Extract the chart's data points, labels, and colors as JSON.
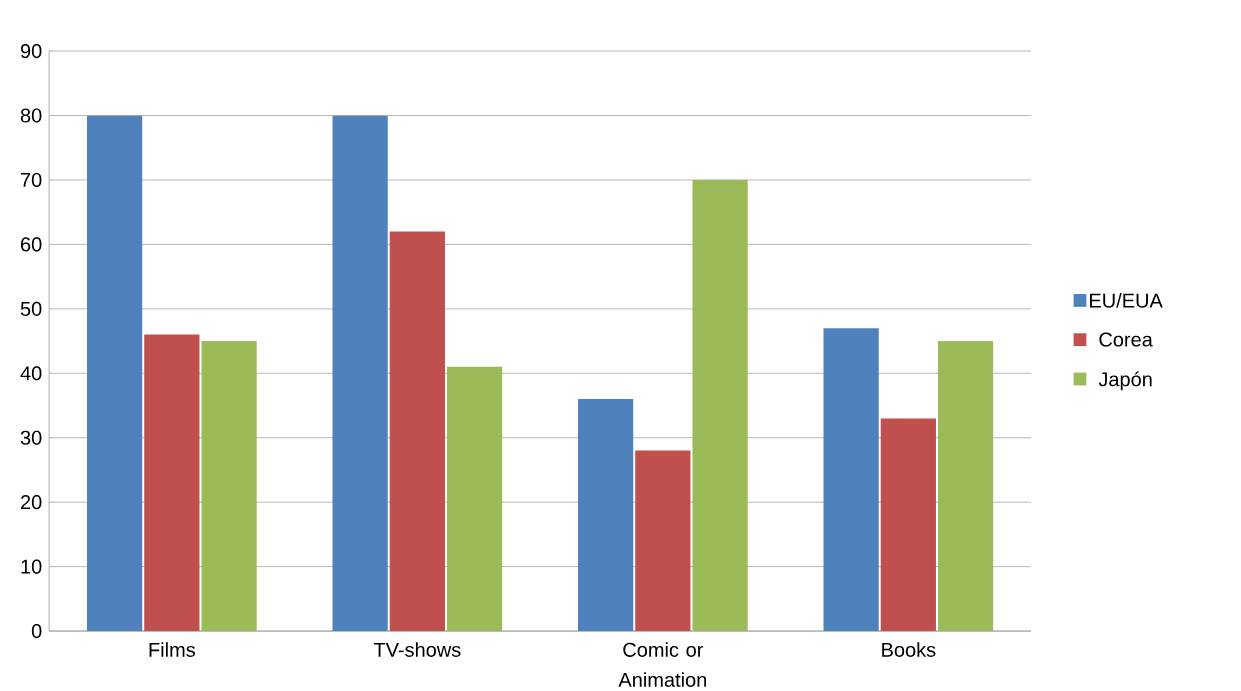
{
  "chart_data": {
    "type": "bar",
    "categories": [
      "Films",
      "TV-shows",
      "Comic or Animation",
      "Books"
    ],
    "series": [
      {
        "name": "EU/EUA",
        "color": "#4f81bd",
        "values": [
          80,
          80,
          36,
          47
        ]
      },
      {
        "name": "Corea",
        "color": "#c0504d",
        "values": [
          46,
          62,
          28,
          33
        ]
      },
      {
        "name": "Japón",
        "color": "#9bbb59",
        "values": [
          45,
          41,
          70,
          45
        ]
      }
    ],
    "ylim": [
      0,
      90
    ],
    "yticks": [
      0,
      10,
      20,
      30,
      40,
      50,
      60,
      70,
      80,
      90
    ],
    "grid": "y",
    "legend": "right"
  }
}
